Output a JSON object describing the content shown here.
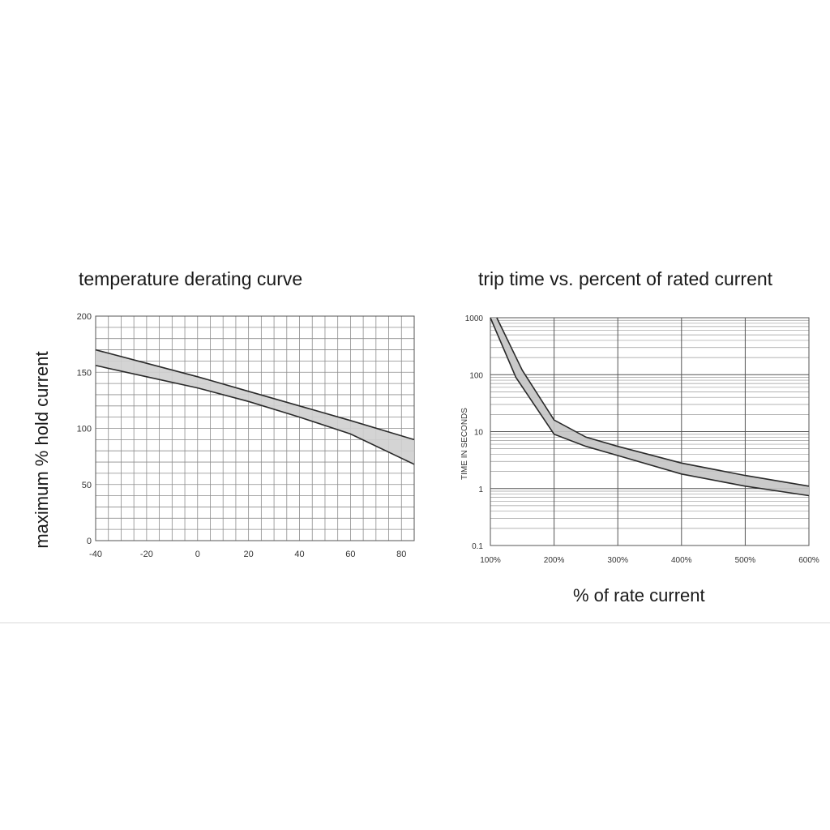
{
  "chart_data": [
    {
      "type": "area",
      "title": "temperature derating curve",
      "xlabel": "",
      "ylabel": "maximum % hold current",
      "xlim": [
        -40,
        85
      ],
      "ylim": [
        0,
        200
      ],
      "x_ticks": [
        "-40",
        "-20",
        "0",
        "20",
        "40",
        "60",
        "80"
      ],
      "y_ticks": [
        "0",
        "50",
        "100",
        "150",
        "200"
      ],
      "grid": true,
      "series": [
        {
          "x": [
            -40,
            -20,
            0,
            20,
            40,
            60,
            85
          ],
          "values": [
            170,
            158,
            146,
            133,
            120,
            107,
            90
          ]
        },
        {
          "x": [
            -40,
            -20,
            0,
            20,
            40,
            60,
            85
          ],
          "values": [
            156,
            146,
            136,
            124,
            110,
            95,
            68
          ]
        }
      ]
    },
    {
      "type": "area",
      "title": "trip time vs. percent of rated current",
      "xlabel": "% of rate current",
      "ylabel": "TIME IN SECONDS",
      "xlim": [
        100,
        600
      ],
      "ylim": [
        0.1,
        1000
      ],
      "y_scale": "log",
      "x_ticks": [
        "100%",
        "200%",
        "300%",
        "400%",
        "500%",
        "600%"
      ],
      "y_ticks": [
        "0.1",
        "1",
        "10",
        "100",
        "1000"
      ],
      "grid": true,
      "series": [
        {
          "x": [
            110,
            150,
            200,
            250,
            300,
            400,
            500,
            600
          ],
          "values": [
            1000,
            120,
            16,
            8,
            5.5,
            2.8,
            1.7,
            1.1
          ]
        },
        {
          "x": [
            100,
            140,
            200,
            250,
            300,
            400,
            500,
            600
          ],
          "values": [
            1000,
            90,
            9,
            5.5,
            3.8,
            1.8,
            1.1,
            0.75
          ]
        }
      ]
    }
  ]
}
